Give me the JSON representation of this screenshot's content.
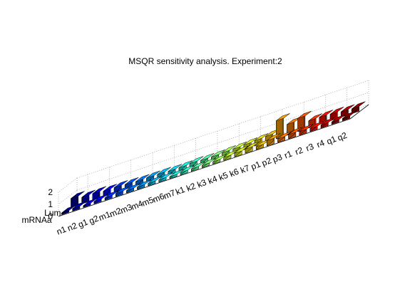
{
  "chart_data": {
    "type": "bar3d",
    "title": "MSQR sensitivity analysis. Experiment:2",
    "zlim": [
      0,
      2
    ],
    "z_ticks": [
      "0",
      "1",
      "2"
    ],
    "grid": true,
    "x_categories": [
      "n1",
      "n2",
      "g1",
      "g2",
      "m1",
      "m2",
      "m3",
      "m4",
      "m5",
      "m6",
      "m7",
      "k1",
      "k2",
      "k3",
      "k4",
      "k5",
      "k6",
      "k7",
      "p1",
      "p2",
      "p3",
      "r1",
      "r2",
      "r3",
      "r4",
      "q1",
      "q2"
    ],
    "y_categories": [
      "Lum",
      "mRNAa"
    ],
    "values": {
      "Lum": [
        0.75,
        0.55,
        0.55,
        0.45,
        0.45,
        0.4,
        0.35,
        0.35,
        0.35,
        0.3,
        0.3,
        0.35,
        0.3,
        0.3,
        0.35,
        0.35,
        0.4,
        0.45,
        0.5,
        1.5,
        0.9,
        1.1,
        0.6,
        0.6,
        0.55,
        0.45,
        0.4
      ],
      "mRNAa": [
        0.15,
        0.2,
        0.15,
        0.2,
        0.2,
        0.25,
        0.2,
        0.2,
        0.2,
        0.2,
        0.15,
        0.2,
        0.2,
        0.2,
        0.2,
        0.25,
        0.3,
        0.35,
        0.25,
        0.45,
        0.3,
        0.35,
        0.3,
        0.25,
        0.25,
        0.2,
        0.2
      ]
    },
    "colormap": [
      "#00008f",
      "#0000ff",
      "#0060ff",
      "#00bfff",
      "#20ffdf",
      "#80ff80",
      "#dfff20",
      "#ffbf00",
      "#ff6000",
      "#ff0000",
      "#8f0000"
    ]
  }
}
